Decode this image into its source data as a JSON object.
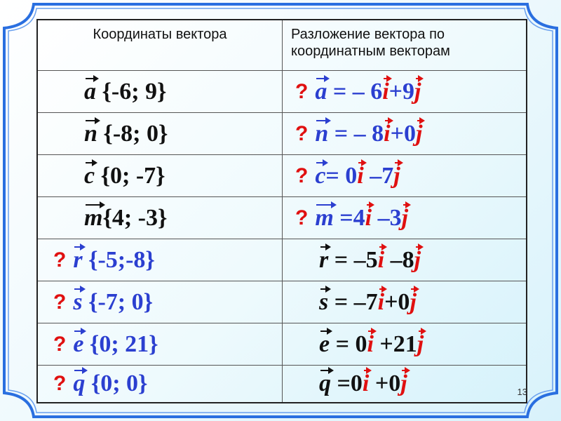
{
  "colors": {
    "blue": "#2b3fd0",
    "red": "#e01010",
    "black": "#111111",
    "frame": "#2a6fe0"
  },
  "header": {
    "col1": "Координаты вектора",
    "col2": "Разложение вектора по координатным векторам"
  },
  "rows": [
    {
      "left_q": false,
      "left": [
        {
          "t": "a",
          "c": "black",
          "v": true
        },
        {
          "t": " {-6; 9}",
          "c": "black"
        }
      ],
      "right_q": true,
      "right": [
        {
          "t": "a",
          "c": "blue",
          "v": true
        },
        {
          "t": " = – 6",
          "c": "blue"
        },
        {
          "t": "i",
          "c": "red",
          "v": true
        },
        {
          "t": "+9",
          "c": "blue"
        },
        {
          "t": "j",
          "c": "red",
          "v": true
        }
      ]
    },
    {
      "left_q": false,
      "left": [
        {
          "t": "n",
          "c": "black",
          "v": true
        },
        {
          "t": " {-8; 0}",
          "c": "black"
        }
      ],
      "right_q": true,
      "right": [
        {
          "t": "n",
          "c": "blue",
          "v": true
        },
        {
          "t": " = – 8",
          "c": "blue"
        },
        {
          "t": "i",
          "c": "red",
          "v": true
        },
        {
          "t": "+0",
          "c": "blue"
        },
        {
          "t": "j",
          "c": "red",
          "v": true
        }
      ]
    },
    {
      "left_q": false,
      "left": [
        {
          "t": "c",
          "c": "black",
          "v": true
        },
        {
          "t": " {0; -7}",
          "c": "black"
        }
      ],
      "right_q": true,
      "right": [
        {
          "t": "c",
          "c": "blue",
          "v": true
        },
        {
          "t": "= 0",
          "c": "blue"
        },
        {
          "t": "i",
          "c": "red",
          "v": true
        },
        {
          "t": " –7",
          "c": "blue"
        },
        {
          "t": "j",
          "c": "red",
          "v": true
        }
      ]
    },
    {
      "left_q": false,
      "left": [
        {
          "t": "m",
          "c": "black",
          "v": true
        },
        {
          "t": "{4; -3}",
          "c": "black"
        }
      ],
      "right_q": true,
      "right": [
        {
          "t": "m",
          "c": "blue",
          "v": true
        },
        {
          "t": " =4",
          "c": "blue"
        },
        {
          "t": "i",
          "c": "red",
          "v": true
        },
        {
          "t": " –3",
          "c": "blue"
        },
        {
          "t": "j",
          "c": "red",
          "v": true
        }
      ]
    },
    {
      "left_q": true,
      "left": [
        {
          "t": "r",
          "c": "blue",
          "v": true
        },
        {
          "t": " {-5;-8}",
          "c": "blue"
        }
      ],
      "right_q": false,
      "right": [
        {
          "t": "r",
          "c": "black",
          "v": true
        },
        {
          "t": " = –5",
          "c": "black"
        },
        {
          "t": "i",
          "c": "red",
          "v": true
        },
        {
          "t": " –8",
          "c": "black"
        },
        {
          "t": "j",
          "c": "red",
          "v": true
        }
      ]
    },
    {
      "left_q": true,
      "left": [
        {
          "t": "s",
          "c": "blue",
          "v": true
        },
        {
          "t": " {-7; 0}",
          "c": "blue"
        }
      ],
      "right_q": false,
      "right": [
        {
          "t": "s",
          "c": "black",
          "v": true
        },
        {
          "t": " = –7",
          "c": "black"
        },
        {
          "t": "i",
          "c": "red",
          "v": true
        },
        {
          "t": "+0",
          "c": "black"
        },
        {
          "t": "j",
          "c": "red",
          "v": true
        }
      ]
    },
    {
      "left_q": true,
      "left": [
        {
          "t": "e",
          "c": "blue",
          "v": true
        },
        {
          "t": " {0; 21}",
          "c": "blue"
        }
      ],
      "right_q": false,
      "right": [
        {
          "t": "e",
          "c": "black",
          "v": true
        },
        {
          "t": " = 0",
          "c": "black"
        },
        {
          "t": "i",
          "c": "red",
          "v": true
        },
        {
          "t": " +21",
          "c": "black"
        },
        {
          "t": "j",
          "c": "red",
          "v": true
        }
      ]
    },
    {
      "left_q": true,
      "left": [
        {
          "t": "q",
          "c": "blue",
          "v": true
        },
        {
          "t": " {0; 0}",
          "c": "blue"
        }
      ],
      "right_q": false,
      "right": [
        {
          "t": "q",
          "c": "black",
          "v": true
        },
        {
          "t": " =0",
          "c": "black"
        },
        {
          "t": "i",
          "c": "red",
          "v": true
        },
        {
          "t": " +0",
          "c": "black"
        },
        {
          "t": "j",
          "c": "red",
          "v": true
        }
      ]
    }
  ],
  "question_mark": "?",
  "page_number": "13"
}
